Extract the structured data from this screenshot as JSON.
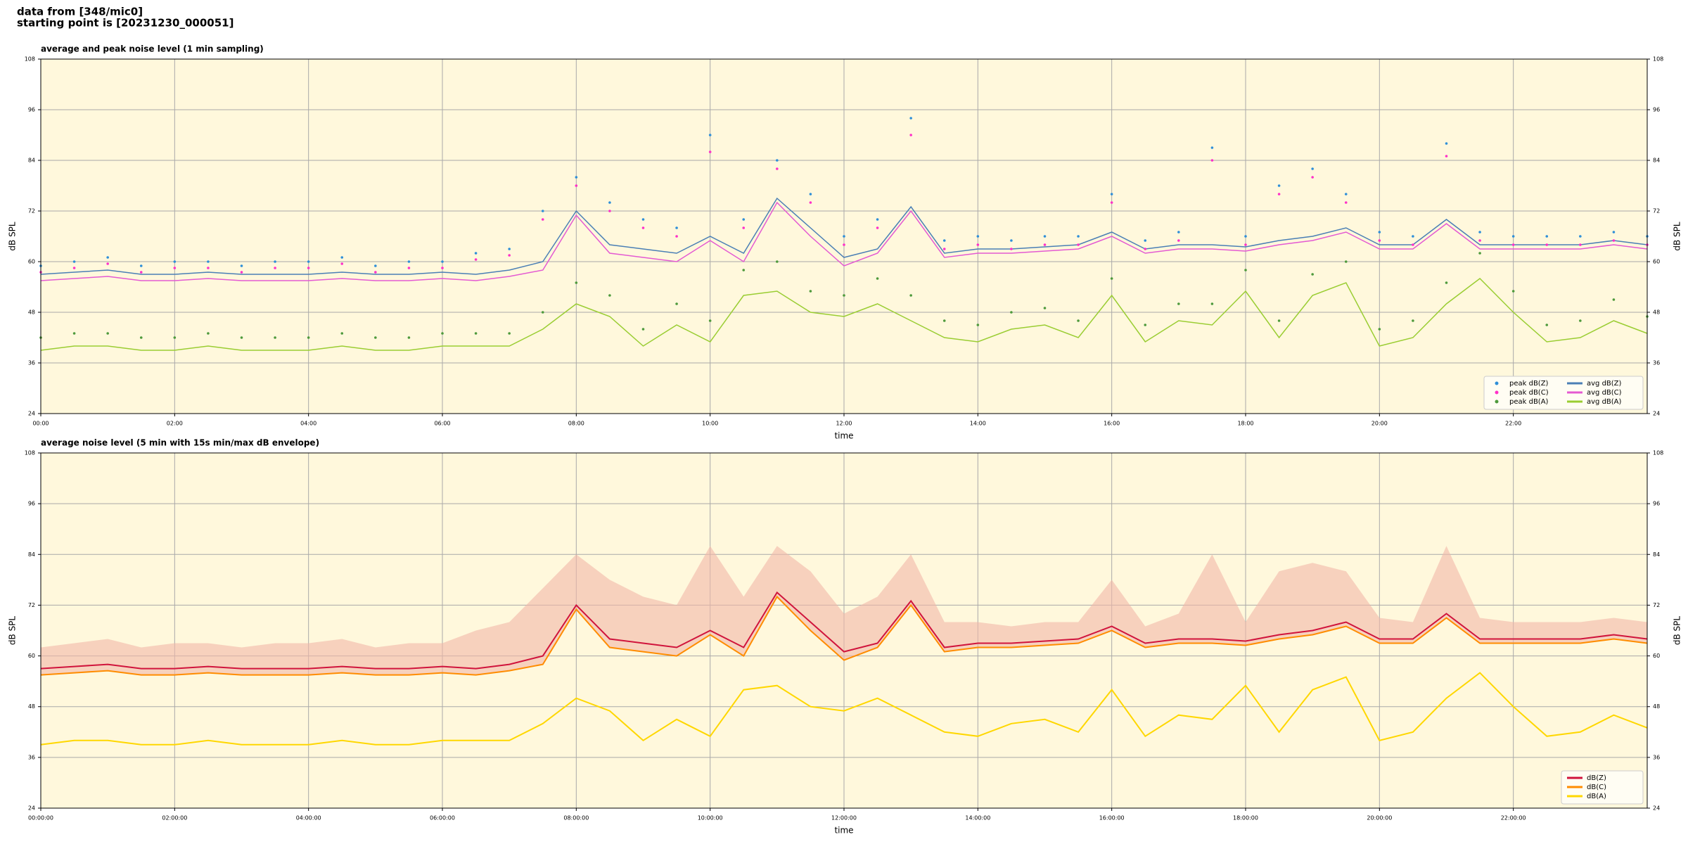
{
  "header": {
    "lines": [
      "data from [348/mic0]",
      "starting point is [20231230_000051]"
    ]
  },
  "chart_data": [
    {
      "type": "line",
      "title": "average and peak noise level (1 min sampling)",
      "xlabel": "time",
      "ylabel": "dB SPL",
      "background": "#fff8dc",
      "grid": true,
      "legend": "lower right",
      "legend_columns": 2,
      "xlim": [
        0,
        24
      ],
      "ylim": [
        24,
        108
      ],
      "yticks": [
        24,
        36,
        48,
        60,
        72,
        84,
        96,
        108
      ],
      "xticks": [
        {
          "value": 0,
          "label": "00:00"
        },
        {
          "value": 2,
          "label": "02:00"
        },
        {
          "value": 4,
          "label": "04:00"
        },
        {
          "value": 6,
          "label": "06:00"
        },
        {
          "value": 8,
          "label": "08:00"
        },
        {
          "value": 10,
          "label": "10:00"
        },
        {
          "value": 12,
          "label": "12:00"
        },
        {
          "value": 14,
          "label": "14:00"
        },
        {
          "value": 16,
          "label": "16:00"
        },
        {
          "value": 18,
          "label": "18:00"
        },
        {
          "value": 20,
          "label": "20:00"
        },
        {
          "value": 22,
          "label": "22:00"
        }
      ],
      "x": [
        0,
        0.5,
        1,
        1.5,
        2,
        2.5,
        3,
        3.5,
        4,
        4.5,
        5,
        5.5,
        6,
        6.5,
        7,
        7.5,
        8,
        8.5,
        9,
        9.5,
        10,
        10.5,
        11,
        11.5,
        12,
        12.5,
        13,
        13.5,
        14,
        14.5,
        15,
        15.5,
        16,
        16.5,
        17,
        17.5,
        18,
        18.5,
        19,
        19.5,
        20,
        20.5,
        21,
        21.5,
        22,
        22.5,
        23,
        23.5,
        24
      ],
      "series": [
        {
          "name": "peak dB(Z)",
          "style": "scatter",
          "color": "#2f8fd8",
          "values": [
            59,
            60,
            61,
            59,
            60,
            60,
            59,
            60,
            60,
            61,
            59,
            60,
            60,
            62,
            63,
            72,
            80,
            74,
            70,
            68,
            90,
            70,
            84,
            76,
            66,
            70,
            94,
            65,
            66,
            65,
            66,
            66,
            76,
            65,
            67,
            87,
            66,
            78,
            82,
            76,
            67,
            66,
            88,
            67,
            66,
            66,
            66,
            67,
            66
          ]
        },
        {
          "name": "peak dB(C)",
          "style": "scatter",
          "color": "#ff30c8",
          "values": [
            57.5,
            58.5,
            59.5,
            57.5,
            58.5,
            58.5,
            57.5,
            58.5,
            58.5,
            59.5,
            57.5,
            58.5,
            58.5,
            60.5,
            61.5,
            70,
            78,
            72,
            68,
            66,
            86,
            68,
            82,
            74,
            64,
            68,
            90,
            63,
            64,
            63,
            64,
            64,
            74,
            63,
            65,
            84,
            64,
            76,
            80,
            74,
            65,
            64,
            85,
            65,
            64,
            64,
            64,
            65,
            64
          ]
        },
        {
          "name": "peak dB(A)",
          "style": "scatter",
          "color": "#4e9a3c",
          "values": [
            42,
            43,
            43,
            42,
            42,
            43,
            42,
            42,
            42,
            43,
            42,
            42,
            43,
            43,
            43,
            48,
            55,
            52,
            44,
            50,
            46,
            58,
            60,
            53,
            52,
            56,
            52,
            46,
            45,
            48,
            49,
            46,
            56,
            45,
            50,
            50,
            58,
            46,
            57,
            60,
            44,
            46,
            55,
            62,
            53,
            45,
            46,
            51,
            47
          ]
        },
        {
          "name": "avg dB(Z)",
          "style": "line",
          "color": "#4a7fb5",
          "values": [
            57,
            57.5,
            58,
            57,
            57,
            57.5,
            57,
            57,
            57,
            57.5,
            57,
            57,
            57.5,
            57,
            58,
            60,
            72,
            64,
            63,
            62,
            66,
            62,
            75,
            68,
            61,
            63,
            73,
            62,
            63,
            63,
            63.5,
            64,
            67,
            63,
            64,
            64,
            63.5,
            65,
            66,
            68,
            64,
            64,
            70,
            64,
            64,
            64,
            64,
            65,
            64
          ]
        },
        {
          "name": "avg dB(C)",
          "style": "line",
          "color": "#e45ad2",
          "values": [
            55.5,
            56,
            56.5,
            55.5,
            55.5,
            56,
            55.5,
            55.5,
            55.5,
            56,
            55.5,
            55.5,
            56,
            55.5,
            56.5,
            58,
            71,
            62,
            61,
            60,
            65,
            60,
            74,
            66,
            59,
            62,
            72,
            61,
            62,
            62,
            62.5,
            63,
            66,
            62,
            63,
            63,
            62.5,
            64,
            65,
            67,
            63,
            63,
            69,
            63,
            63,
            63,
            63,
            64,
            63
          ]
        },
        {
          "name": "avg dB(A)",
          "style": "line",
          "color": "#9acd32",
          "values": [
            39,
            40,
            40,
            39,
            39,
            40,
            39,
            39,
            39,
            40,
            39,
            39,
            40,
            40,
            40,
            44,
            50,
            47,
            40,
            45,
            41,
            52,
            53,
            48,
            47,
            50,
            46,
            42,
            41,
            44,
            45,
            42,
            52,
            41,
            46,
            45,
            53,
            42,
            52,
            55,
            40,
            42,
            50,
            56,
            48,
            41,
            42,
            46,
            43
          ]
        }
      ]
    },
    {
      "type": "line",
      "title": "average noise level (5 min with 15s min/max dB envelope)",
      "xlabel": "time",
      "ylabel": "dB SPL",
      "background": "#fff8dc",
      "grid": true,
      "legend": "lower right",
      "legend_columns": 1,
      "xlim": [
        0,
        24
      ],
      "ylim": [
        24,
        108
      ],
      "yticks": [
        24,
        36,
        48,
        60,
        72,
        84,
        96,
        108
      ],
      "xticks": [
        {
          "value": 0,
          "label": "00:00:00"
        },
        {
          "value": 2,
          "label": "02:00:00"
        },
        {
          "value": 4,
          "label": "04:00:00"
        },
        {
          "value": 6,
          "label": "06:00:00"
        },
        {
          "value": 8,
          "label": "08:00:00"
        },
        {
          "value": 10,
          "label": "10:00:00"
        },
        {
          "value": 12,
          "label": "12:00:00"
        },
        {
          "value": 14,
          "label": "14:00:00"
        },
        {
          "value": 16,
          "label": "16:00:00"
        },
        {
          "value": 18,
          "label": "18:00:00"
        },
        {
          "value": 20,
          "label": "20:00:00"
        },
        {
          "value": 22,
          "label": "22:00:00"
        }
      ],
      "x": [
        0,
        0.5,
        1,
        1.5,
        2,
        2.5,
        3,
        3.5,
        4,
        4.5,
        5,
        5.5,
        6,
        6.5,
        7,
        7.5,
        8,
        8.5,
        9,
        9.5,
        10,
        10.5,
        11,
        11.5,
        12,
        12.5,
        13,
        13.5,
        14,
        14.5,
        15,
        15.5,
        16,
        16.5,
        17,
        17.5,
        18,
        18.5,
        19,
        19.5,
        20,
        20.5,
        21,
        21.5,
        22,
        22.5,
        23,
        23.5,
        24
      ],
      "envelope": {
        "color": "#f2b8a8",
        "values": [
          62,
          63,
          64,
          62,
          63,
          63,
          62,
          63,
          63,
          64,
          62,
          63,
          63,
          66,
          68,
          76,
          84,
          78,
          74,
          72,
          86,
          74,
          86,
          80,
          70,
          74,
          84,
          68,
          68,
          67,
          68,
          68,
          78,
          67,
          70,
          84,
          68,
          80,
          82,
          80,
          69,
          68,
          86,
          69,
          68,
          68,
          68,
          69,
          68
        ]
      },
      "series": [
        {
          "name": "dB(Z)",
          "style": "line",
          "color": "#d0143c",
          "values": [
            57,
            57.5,
            58,
            57,
            57,
            57.5,
            57,
            57,
            57,
            57.5,
            57,
            57,
            57.5,
            57,
            58,
            60,
            72,
            64,
            63,
            62,
            66,
            62,
            75,
            68,
            61,
            63,
            73,
            62,
            63,
            63,
            63.5,
            64,
            67,
            63,
            64,
            64,
            63.5,
            65,
            66,
            68,
            64,
            64,
            70,
            64,
            64,
            64,
            64,
            65,
            64
          ]
        },
        {
          "name": "dB(C)",
          "style": "line",
          "color": "#ff8c00",
          "values": [
            55.5,
            56,
            56.5,
            55.5,
            55.5,
            56,
            55.5,
            55.5,
            55.5,
            56,
            55.5,
            55.5,
            56,
            55.5,
            56.5,
            58,
            71,
            62,
            61,
            60,
            65,
            60,
            74,
            66,
            59,
            62,
            72,
            61,
            62,
            62,
            62.5,
            63,
            66,
            62,
            63,
            63,
            62.5,
            64,
            65,
            67,
            63,
            63,
            69,
            63,
            63,
            63,
            63,
            64,
            63
          ]
        },
        {
          "name": "dB(A)",
          "style": "line",
          "color": "#ffd700",
          "values": [
            39,
            40,
            40,
            39,
            39,
            40,
            39,
            39,
            39,
            40,
            39,
            39,
            40,
            40,
            40,
            44,
            50,
            47,
            40,
            45,
            41,
            52,
            53,
            48,
            47,
            50,
            46,
            42,
            41,
            44,
            45,
            42,
            52,
            41,
            46,
            45,
            53,
            42,
            52,
            55,
            40,
            42,
            50,
            56,
            48,
            41,
            42,
            46,
            43
          ]
        }
      ]
    }
  ]
}
